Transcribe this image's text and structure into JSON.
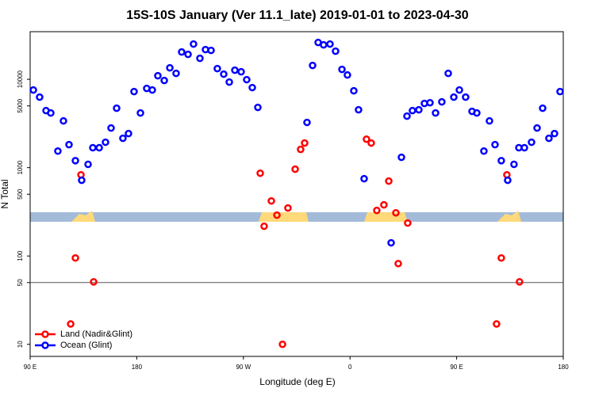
{
  "chart_data": {
    "type": "scatter",
    "title": "15S-10S January (Ver 11.1_late)   2019-01-01 to 2023-04-30",
    "x_label": "Longitude (deg E)",
    "y_label": "N Total",
    "xlim": [
      90,
      540
    ],
    "ylim": [
      7.3,
      34600
    ],
    "ylog": true,
    "xticks": [
      {
        "value": 90,
        "label": "90 E"
      },
      180,
      {
        "value": 270,
        "label": "90 W"
      },
      {
        "value": 360,
        "label": "0"
      },
      {
        "value": 450,
        "label": "90 E"
      },
      {
        "value": 540,
        "label": "180"
      }
    ],
    "yticks": [
      10,
      50,
      100,
      500,
      1000,
      5000,
      10000
    ],
    "reference_line": 50,
    "legend": "bottom-left",
    "series": [
      {
        "name": "Land (Nadir&Glint)",
        "color": "#ff0000",
        "x": [
          124.2,
          128.2,
          132.9,
          143.6,
          284.2,
          287.5,
          293.6,
          298.3,
          303.0,
          307.6,
          313.7,
          318.3,
          321.7,
          373.9,
          377.9,
          382.6,
          388.6,
          392.7,
          398.7,
          400.7,
          408.7,
          483.7,
          487.7,
          492.4,
          503.1
        ],
        "values": [
          17,
          95,
          830,
          51,
          865,
          217,
          420,
          290,
          10,
          349,
          960,
          1610,
          1900,
          2100,
          1900,
          328,
          379,
          705,
          308,
          82,
          236,
          17,
          95,
          830,
          51
        ]
      },
      {
        "name": "Ocean (Glint)",
        "color": "#0000ff",
        "x": [
          92.7,
          98.0,
          103.4,
          107.4,
          113.4,
          118.1,
          122.8,
          128.2,
          133.5,
          138.9,
          142.9,
          148.3,
          153.6,
          158.3,
          163.0,
          168.3,
          173.0,
          177.7,
          183.1,
          188.4,
          193.1,
          197.8,
          203.2,
          207.9,
          213.2,
          217.9,
          223.3,
          227.9,
          233.3,
          238.0,
          242.7,
          248.0,
          253.4,
          258.1,
          262.8,
          268.1,
          272.8,
          277.5,
          282.2,
          323.7,
          328.4,
          333.1,
          337.7,
          343.1,
          347.8,
          353.2,
          357.8,
          363.2,
          367.2,
          371.9,
          394.7,
          403.4,
          408.1,
          412.7,
          418.1,
          422.8,
          427.5,
          432.2,
          437.5,
          442.9,
          447.6,
          452.3,
          457.6,
          463.0,
          467.0,
          473.0,
          477.7,
          482.4,
          487.7,
          493.1,
          498.4,
          502.5,
          507.2,
          513.2,
          517.9,
          522.6,
          527.9,
          532.6,
          537.3
        ],
        "values": [
          7570,
          6280,
          4420,
          4160,
          1540,
          3380,
          1820,
          1200,
          720,
          1090,
          1680,
          1680,
          1940,
          2810,
          4710,
          2150,
          2430,
          7260,
          4160,
          7890,
          7570,
          10970,
          9700,
          13490,
          11670,
          20370,
          19140,
          25060,
          17280,
          21690,
          21240,
          13210,
          11430,
          9300,
          12680,
          12170,
          9910,
          8060,
          4810,
          3250,
          14350,
          26120,
          24550,
          25060,
          20800,
          12940,
          11190,
          7410,
          4520,
          750,
          141,
          1310,
          3830,
          4420,
          4520,
          5330,
          5430,
          4160,
          5550,
          11670,
          6280,
          7570,
          6280,
          4340,
          4160,
          1540,
          3380,
          1820,
          1200,
          720,
          1090,
          1680,
          1680,
          1940,
          2810,
          4710,
          2150,
          2430,
          7260
        ]
      }
    ]
  }
}
